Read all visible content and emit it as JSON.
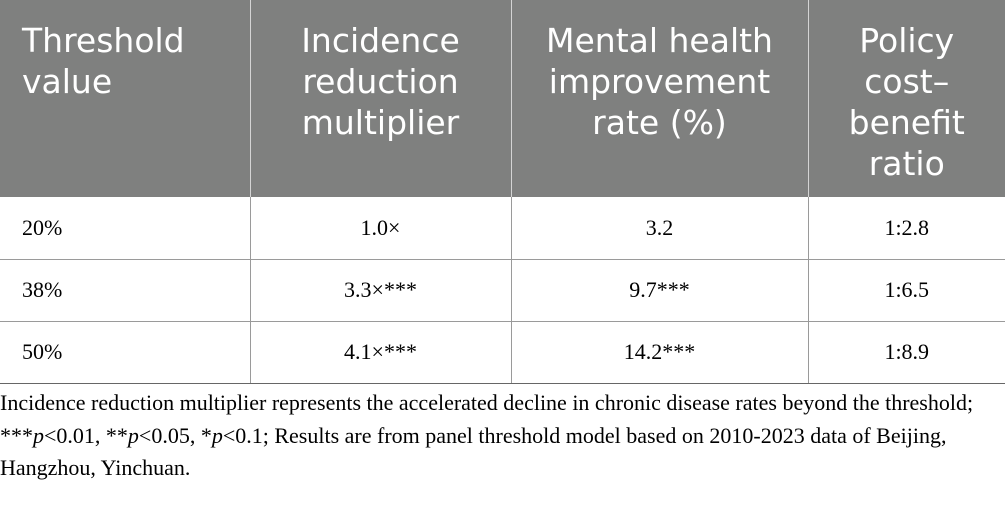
{
  "table": {
    "headers": [
      "Threshold value",
      "Incidence reduction multiplier",
      "Mental health improvement rate (%)",
      "Policy cost– benefit ratio"
    ],
    "rows": [
      [
        "20%",
        "1.0×",
        "3.2",
        "1:2.8"
      ],
      [
        "38%",
        "3.3×***",
        "9.7***",
        "1:6.5"
      ],
      [
        "50%",
        "4.1×***",
        "14.2***",
        "1:8.9"
      ]
    ]
  },
  "footnote": {
    "part1": "Incidence reduction multiplier represents the accelerated decline in chronic disease rates beyond the threshold; ***",
    "p1": "p",
    "part2": "<0.01, **",
    "p2": "p",
    "part3": "<0.05, *",
    "p3": "p",
    "part4": "<0.1; Results are from panel threshold model based on 2010-2023 data of Beijing, Hangzhou, Yinchuan."
  }
}
